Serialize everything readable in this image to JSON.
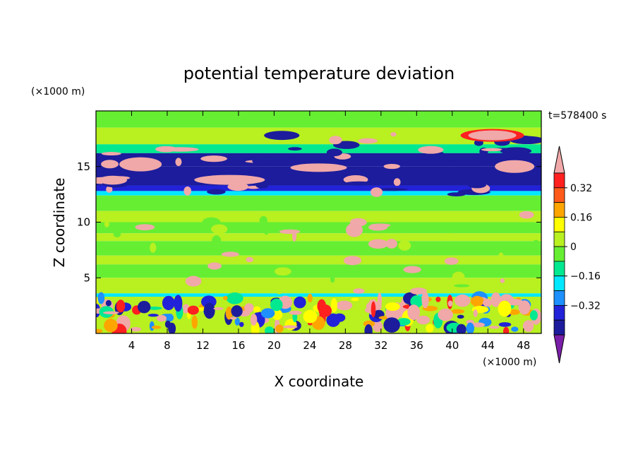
{
  "chart_data": {
    "type": "heatmap",
    "title": "potential temperature deviation",
    "time_label": "t=578400 s",
    "xlabel": "X coordinate",
    "ylabel": "Z coordinate",
    "x_unit": "(×1000 m)",
    "y_unit": "(×1000 m)",
    "xlim": [
      0,
      50
    ],
    "ylim": [
      0,
      20
    ],
    "x_ticks": [
      4,
      8,
      12,
      16,
      20,
      24,
      28,
      32,
      36,
      40,
      44,
      48
    ],
    "y_ticks": [
      5,
      10,
      15
    ],
    "colorbar": {
      "levels": [
        -0.48,
        -0.4,
        -0.32,
        -0.24,
        -0.16,
        -0.08,
        0,
        0.08,
        0.16,
        0.24,
        0.32,
        0.4
      ],
      "tick_labels": [
        "0.32",
        "0.16",
        "0",
        "−0.16",
        "−0.32"
      ],
      "tick_values": [
        0.32,
        0.16,
        0,
        -0.16,
        -0.32
      ],
      "colors": [
        "#7a1fa8",
        "#1c1c9c",
        "#2222d8",
        "#1e90ff",
        "#00e8ff",
        "#00e890",
        "#66ee33",
        "#b8f020",
        "#ffff00",
        "#ffa500",
        "#ff5a1a",
        "#ff2020",
        "#f0a8a8"
      ]
    },
    "bands": [
      {
        "z0": 18.5,
        "z1": 20,
        "value": -0.04
      },
      {
        "z0": 17.0,
        "z1": 18.5,
        "value": 0.06
      },
      {
        "z0": 16.2,
        "z1": 17.0,
        "value": -0.14
      },
      {
        "z0": 15.0,
        "z1": 16.2,
        "value": -0.44
      },
      {
        "z0": 13.3,
        "z1": 15.0,
        "value": -0.44
      },
      {
        "z0": 12.8,
        "z1": 13.3,
        "value": -0.36
      },
      {
        "z0": 12.4,
        "z1": 12.8,
        "value": -0.2
      },
      {
        "z0": 11.0,
        "z1": 12.4,
        "value": -0.05
      },
      {
        "z0": 10.0,
        "z1": 11.0,
        "value": 0.03
      },
      {
        "z0": 9.0,
        "z1": 10.0,
        "value": -0.05
      },
      {
        "z0": 8.3,
        "z1": 9.0,
        "value": 0.04
      },
      {
        "z0": 7.0,
        "z1": 8.3,
        "value": -0.05
      },
      {
        "z0": 6.2,
        "z1": 7.0,
        "value": 0.02
      },
      {
        "z0": 5.0,
        "z1": 6.2,
        "value": -0.04
      },
      {
        "z0": 3.6,
        "z1": 5.0,
        "value": 0.03
      },
      {
        "z0": 3.3,
        "z1": 3.6,
        "value": -0.2
      },
      {
        "z0": 0.0,
        "z1": 3.3,
        "value": 0.06
      }
    ]
  }
}
